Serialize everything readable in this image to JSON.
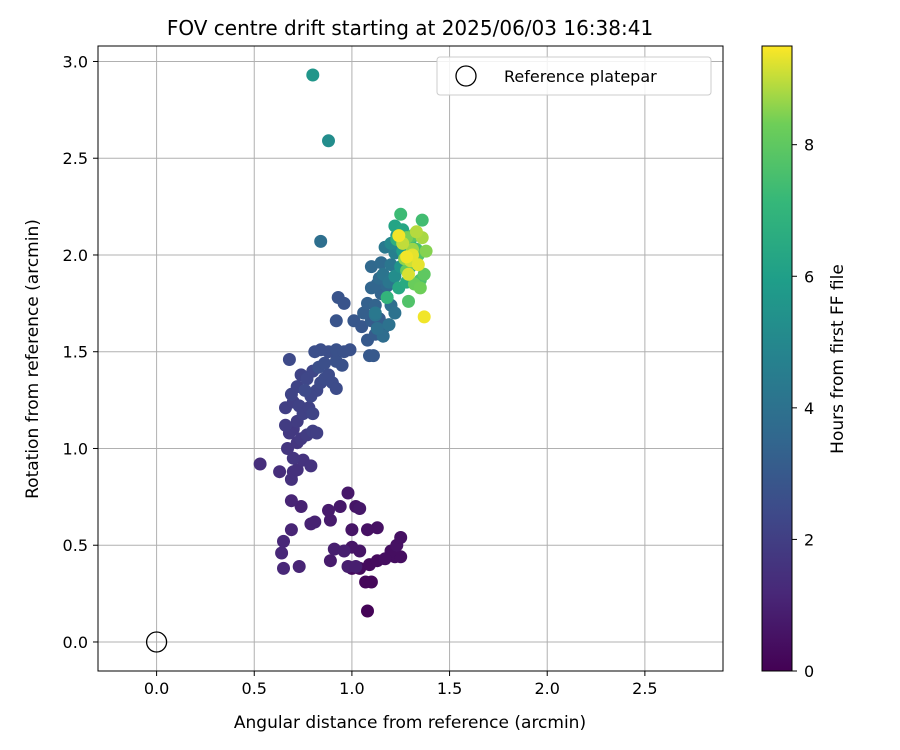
{
  "chart_data": {
    "type": "scatter",
    "title": "FOV centre drift starting at 2025/06/03 16:38:41",
    "xlabel": "Angular distance from reference (arcmin)",
    "ylabel": "Rotation from reference (arcmin)",
    "xlim": [
      -0.3,
      2.9
    ],
    "ylim": [
      -0.15,
      3.08
    ],
    "xticks": [
      0.0,
      0.5,
      1.0,
      1.5,
      2.0,
      2.5
    ],
    "xtick_labels": [
      "0.0",
      "0.5",
      "1.0",
      "1.5",
      "2.0",
      "2.5"
    ],
    "yticks": [
      0.0,
      0.5,
      1.0,
      1.5,
      2.0,
      2.5,
      3.0
    ],
    "ytick_labels": [
      "0.0",
      "0.5",
      "1.0",
      "1.5",
      "2.0",
      "2.5",
      "3.0"
    ],
    "grid": true,
    "legend": {
      "position": "top-right",
      "entries": [
        "Reference platepar"
      ]
    },
    "reference_point": {
      "x": 0.0,
      "y": 0.0
    },
    "colorbar": {
      "label": "Hours from first FF file",
      "colormap": "viridis",
      "range": [
        0,
        9.5
      ],
      "ticks": [
        0,
        2,
        4,
        6,
        8
      ],
      "tick_labels": [
        "0",
        "2",
        "4",
        "6",
        "8"
      ]
    },
    "series": [
      {
        "points": [
          [
            1.08,
            0.16,
            0.1
          ],
          [
            1.07,
            0.31,
            0.2
          ],
          [
            1.1,
            0.31,
            0.2
          ],
          [
            1.04,
            0.38,
            0.3
          ],
          [
            1.0,
            0.38,
            0.3
          ],
          [
            1.09,
            0.4,
            0.3
          ],
          [
            1.13,
            0.42,
            0.3
          ],
          [
            1.22,
            0.44,
            0.4
          ],
          [
            1.25,
            0.44,
            0.4
          ],
          [
            1.2,
            0.47,
            0.4
          ],
          [
            1.17,
            0.43,
            0.4
          ],
          [
            1.23,
            0.5,
            0.5
          ],
          [
            1.25,
            0.54,
            0.5
          ],
          [
            1.13,
            0.59,
            0.5
          ],
          [
            1.08,
            0.58,
            0.5
          ],
          [
            1.04,
            0.47,
            0.6
          ],
          [
            1.0,
            0.49,
            0.6
          ],
          [
            1.0,
            0.58,
            0.6
          ],
          [
            1.02,
            0.7,
            0.6
          ],
          [
            1.04,
            0.69,
            0.7
          ],
          [
            0.98,
            0.77,
            0.7
          ],
          [
            0.94,
            0.7,
            0.7
          ],
          [
            0.89,
            0.63,
            0.8
          ],
          [
            0.88,
            0.68,
            0.8
          ],
          [
            0.89,
            0.42,
            0.8
          ],
          [
            0.91,
            0.48,
            0.9
          ],
          [
            0.96,
            0.47,
            0.9
          ],
          [
            0.98,
            0.39,
            0.9
          ],
          [
            1.02,
            0.39,
            0.9
          ],
          [
            0.81,
            0.62,
            1.0
          ],
          [
            0.79,
            0.61,
            1.0
          ],
          [
            0.74,
            0.7,
            1.0
          ],
          [
            0.73,
            0.39,
            1.1
          ],
          [
            0.69,
            0.73,
            1.1
          ],
          [
            0.69,
            0.58,
            1.1
          ],
          [
            0.65,
            0.52,
            1.2
          ],
          [
            0.64,
            0.46,
            1.2
          ],
          [
            0.65,
            0.38,
            1.2
          ],
          [
            0.53,
            0.92,
            1.4
          ],
          [
            0.63,
            0.88,
            1.4
          ],
          [
            0.69,
            0.84,
            1.5
          ],
          [
            0.7,
            0.88,
            1.5
          ],
          [
            0.72,
            0.89,
            1.5
          ],
          [
            0.75,
            0.94,
            1.6
          ],
          [
            0.79,
            0.91,
            1.6
          ],
          [
            0.7,
            0.95,
            1.7
          ],
          [
            0.67,
            1.0,
            1.7
          ],
          [
            0.72,
            1.03,
            1.7
          ],
          [
            0.74,
            1.05,
            1.8
          ],
          [
            0.7,
            1.1,
            1.8
          ],
          [
            0.68,
            1.08,
            1.8
          ],
          [
            0.66,
            1.12,
            1.9
          ],
          [
            0.72,
            1.14,
            1.9
          ],
          [
            0.77,
            1.07,
            1.9
          ],
          [
            0.8,
            1.09,
            2.0
          ],
          [
            0.82,
            1.08,
            2.0
          ],
          [
            0.66,
            1.21,
            2.0
          ],
          [
            0.7,
            1.24,
            2.0
          ],
          [
            0.73,
            1.22,
            2.1
          ],
          [
            0.75,
            1.18,
            2.1
          ],
          [
            0.78,
            1.21,
            2.1
          ],
          [
            0.8,
            1.18,
            2.2
          ],
          [
            0.69,
            1.28,
            2.2
          ],
          [
            0.72,
            1.32,
            2.2
          ],
          [
            0.74,
            1.38,
            2.2
          ],
          [
            0.77,
            1.36,
            2.3
          ],
          [
            0.8,
            1.4,
            2.3
          ],
          [
            0.82,
            1.3,
            2.3
          ],
          [
            0.79,
            1.27,
            2.3
          ],
          [
            0.76,
            1.3,
            2.4
          ],
          [
            0.68,
            1.46,
            2.4
          ],
          [
            0.84,
            1.34,
            2.4
          ],
          [
            0.86,
            1.36,
            2.5
          ],
          [
            0.88,
            1.38,
            2.5
          ],
          [
            0.9,
            1.34,
            2.5
          ],
          [
            0.92,
            1.31,
            2.5
          ],
          [
            0.83,
            1.42,
            2.6
          ],
          [
            0.86,
            1.44,
            2.6
          ],
          [
            0.88,
            1.5,
            2.6
          ],
          [
            0.84,
            1.51,
            2.6
          ],
          [
            0.81,
            1.5,
            2.6
          ],
          [
            0.92,
            1.45,
            2.7
          ],
          [
            0.95,
            1.43,
            2.7
          ],
          [
            0.92,
            1.51,
            2.7
          ],
          [
            0.96,
            1.5,
            2.7
          ],
          [
            0.99,
            1.51,
            2.7
          ],
          [
            0.92,
            1.66,
            2.8
          ],
          [
            0.93,
            1.78,
            2.8
          ],
          [
            0.96,
            1.75,
            2.8
          ],
          [
            1.01,
            1.66,
            2.9
          ],
          [
            1.05,
            1.63,
            2.9
          ],
          [
            1.09,
            1.48,
            3.0
          ],
          [
            1.11,
            1.48,
            3.0
          ],
          [
            1.08,
            1.56,
            3.0
          ],
          [
            1.12,
            1.59,
            3.1
          ],
          [
            1.1,
            1.66,
            3.1
          ],
          [
            1.06,
            1.7,
            3.2
          ],
          [
            1.14,
            1.67,
            3.2
          ],
          [
            1.16,
            1.62,
            3.3
          ],
          [
            1.08,
            1.75,
            3.3
          ],
          [
            1.12,
            1.74,
            3.4
          ],
          [
            1.15,
            1.8,
            3.4
          ],
          [
            1.1,
            1.83,
            3.5
          ],
          [
            1.13,
            1.85,
            3.5
          ],
          [
            1.18,
            1.84,
            3.6
          ],
          [
            1.1,
            1.94,
            3.6
          ],
          [
            1.14,
            1.88,
            3.7
          ],
          [
            1.15,
            1.96,
            3.7
          ],
          [
            1.18,
            1.78,
            3.8
          ],
          [
            1.16,
            1.58,
            3.8
          ],
          [
            1.13,
            1.62,
            3.9
          ],
          [
            1.2,
            1.74,
            3.9
          ],
          [
            1.22,
            1.7,
            4.0
          ],
          [
            1.19,
            1.64,
            4.0
          ],
          [
            1.12,
            1.69,
            4.1
          ],
          [
            1.16,
            1.9,
            4.1
          ],
          [
            1.19,
            1.86,
            4.2
          ],
          [
            1.2,
            1.95,
            4.2
          ],
          [
            1.17,
            2.04,
            4.3
          ],
          [
            1.12,
            1.7,
            4.3
          ],
          [
            0.84,
            2.07,
            3.9
          ],
          [
            0.88,
            2.59,
            5.2
          ],
          [
            0.8,
            2.93,
            5.6
          ],
          [
            1.22,
            2.01,
            4.6
          ],
          [
            1.24,
            2.04,
            4.8
          ],
          [
            1.2,
            2.06,
            5.0
          ],
          [
            1.22,
            1.89,
            5.2
          ],
          [
            1.25,
            1.94,
            5.5
          ],
          [
            1.23,
            2.1,
            5.7
          ],
          [
            1.26,
            2.02,
            6.0
          ],
          [
            1.22,
            2.15,
            6.2
          ],
          [
            1.26,
            2.13,
            6.3
          ],
          [
            1.24,
            1.83,
            6.4
          ],
          [
            1.28,
            1.86,
            6.5
          ],
          [
            1.3,
            1.94,
            6.6
          ],
          [
            1.27,
            2.06,
            6.7
          ],
          [
            1.23,
            2.08,
            6.8
          ],
          [
            1.18,
            1.78,
            7.0
          ],
          [
            1.32,
            2.0,
            7.1
          ],
          [
            1.3,
            2.08,
            7.2
          ],
          [
            1.25,
            2.21,
            7.3
          ],
          [
            1.36,
            2.18,
            7.4
          ],
          [
            1.33,
            2.03,
            7.5
          ],
          [
            1.35,
            1.87,
            7.6
          ],
          [
            1.29,
            1.76,
            7.7
          ],
          [
            1.34,
            2.0,
            7.8
          ],
          [
            1.31,
            2.1,
            7.9
          ],
          [
            1.37,
            1.9,
            8.0
          ],
          [
            1.28,
            1.92,
            8.1
          ],
          [
            1.32,
            1.85,
            8.2
          ],
          [
            1.35,
            1.83,
            8.3
          ],
          [
            1.28,
            2.09,
            8.4
          ],
          [
            1.38,
            2.02,
            8.5
          ],
          [
            1.27,
            1.98,
            8.6
          ],
          [
            1.31,
            2.03,
            8.7
          ],
          [
            1.36,
            2.09,
            8.8
          ],
          [
            1.33,
            2.12,
            8.9
          ],
          [
            1.26,
            2.06,
            9.0
          ],
          [
            1.3,
            1.97,
            9.1
          ],
          [
            1.29,
            1.9,
            9.2
          ],
          [
            1.34,
            1.95,
            9.3
          ],
          [
            1.31,
            2.0,
            9.3
          ],
          [
            1.37,
            1.68,
            9.4
          ],
          [
            1.24,
            2.1,
            9.4
          ],
          [
            1.28,
            1.99,
            9.4
          ]
        ]
      }
    ]
  }
}
